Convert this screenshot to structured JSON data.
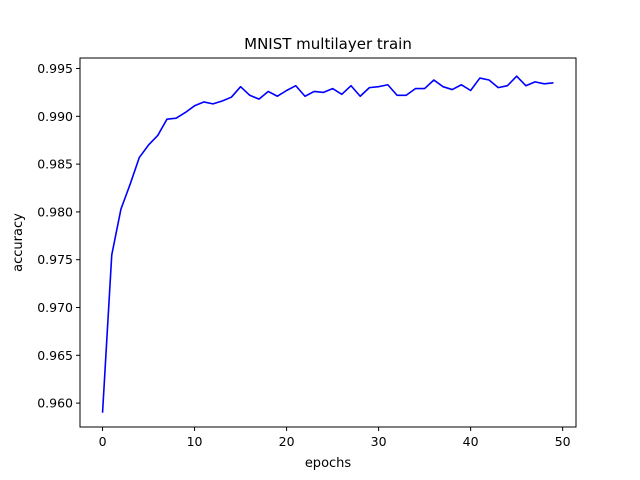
{
  "chart_data": {
    "type": "line",
    "title": "MNIST multilayer train",
    "xlabel": "epochs",
    "ylabel": "accuracy",
    "xlim": [
      -2.45,
      51.45
    ],
    "ylim": [
      0.9575,
      0.9961
    ],
    "grid": false,
    "x_ticks": [
      0,
      10,
      20,
      30,
      40,
      50
    ],
    "y_ticks": [
      0.96,
      0.965,
      0.97,
      0.975,
      0.98,
      0.985,
      0.99,
      0.995
    ],
    "y_tick_labels": [
      "0.960",
      "0.965",
      "0.970",
      "0.975",
      "0.980",
      "0.985",
      "0.990",
      "0.995"
    ],
    "series": [
      {
        "color": "#0000ff",
        "x": [
          0,
          1,
          2,
          3,
          4,
          5,
          6,
          7,
          8,
          9,
          10,
          11,
          12,
          13,
          14,
          15,
          16,
          17,
          18,
          19,
          20,
          21,
          22,
          23,
          24,
          25,
          26,
          27,
          28,
          29,
          30,
          31,
          32,
          33,
          34,
          35,
          36,
          37,
          38,
          39,
          40,
          41,
          42,
          43,
          44,
          45,
          46,
          47,
          48,
          49
        ],
        "values": [
          0.959,
          0.9755,
          0.9803,
          0.9829,
          0.9857,
          0.987,
          0.988,
          0.9897,
          0.9898,
          0.9904,
          0.9911,
          0.9915,
          0.9913,
          0.9916,
          0.992,
          0.9931,
          0.9922,
          0.9918,
          0.9926,
          0.9921,
          0.9927,
          0.9932,
          0.9921,
          0.9926,
          0.9925,
          0.9929,
          0.9923,
          0.9932,
          0.9921,
          0.993,
          0.9931,
          0.9933,
          0.9922,
          0.9922,
          0.9929,
          0.9929,
          0.9938,
          0.9931,
          0.9928,
          0.9933,
          0.9927,
          0.994,
          0.9938,
          0.993,
          0.9932,
          0.9942,
          0.9932,
          0.9936,
          0.9934,
          0.9935
        ]
      }
    ]
  }
}
